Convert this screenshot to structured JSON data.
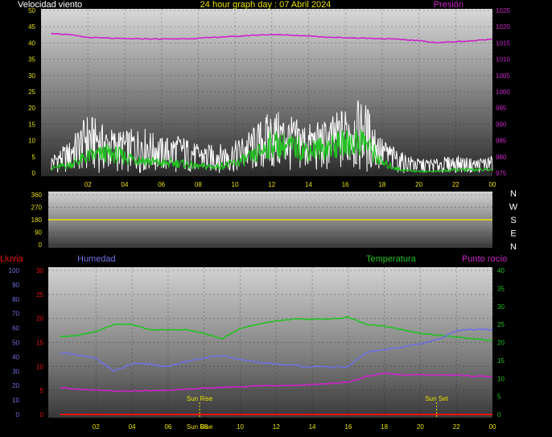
{
  "header": {
    "wind_label": "Velocidad viento",
    "title": "24 hour graph day : 07 Abril 2024",
    "pressure_label": "Presión"
  },
  "lower_labels": {
    "rain": "Lluvia",
    "humidity": "Humedad",
    "temperature": "Temperatura",
    "dewpoint": "Punto rocío"
  },
  "colors": {
    "wind": "#ffffff",
    "wind_avg": "#22c322",
    "pressure": "#cc22cc",
    "direction": "#e8e000",
    "temperature": "#22c322",
    "humidity": "#7070e0",
    "dewpoint": "#cc22cc",
    "rain": "#ee1111",
    "left_axis_1": "#e8e000",
    "left_axis_rain": "#ee1111",
    "left_axis_hum": "#7070e0",
    "right_axis_temp": "#22c322",
    "right_axis_press": "#cc22cc"
  },
  "chart_data": [
    {
      "type": "line",
      "title": "24 hour graph day : 07 Abril 2024",
      "x_ticks": [
        "02",
        "04",
        "06",
        "08",
        "10",
        "12",
        "14",
        "16",
        "18",
        "20",
        "22",
        "00"
      ],
      "y_left": {
        "label": "Velocidad viento",
        "ticks": [
          0,
          5,
          10,
          15,
          20,
          25,
          30,
          35,
          40,
          45,
          50
        ],
        "ylim": [
          0,
          50
        ]
      },
      "y_right": {
        "label": "Presión",
        "ticks": [
          975,
          980,
          985,
          990,
          995,
          1000,
          1005,
          1010,
          1015,
          1020,
          1025
        ],
        "ylim": [
          975,
          1025
        ]
      },
      "series": [
        {
          "name": "Presión",
          "axis": "right",
          "x": [
            0,
            1,
            2,
            3,
            4,
            5,
            6,
            7,
            8,
            9,
            10,
            11,
            12,
            13,
            14,
            15,
            16,
            17,
            18,
            19,
            20,
            21,
            22,
            23,
            24
          ],
          "values": [
            1018,
            1017.5,
            1016.7,
            1016.5,
            1016.3,
            1016.3,
            1016.2,
            1016.3,
            1016.4,
            1016.8,
            1017,
            1017.4,
            1017.6,
            1017.4,
            1017.2,
            1016.8,
            1016.6,
            1016.5,
            1016.3,
            1016.1,
            1015.7,
            1015.1,
            1015.4,
            1015.7,
            1016.2
          ]
        }
      ],
      "wind_gust": {
        "x": [
          0,
          1,
          2,
          3,
          4,
          5,
          6,
          7,
          8,
          9,
          10,
          11,
          12,
          13,
          14,
          15,
          16,
          17,
          18,
          19,
          20,
          21,
          22,
          23,
          24
        ],
        "values": [
          5,
          9,
          17,
          13,
          12,
          13,
          10,
          11,
          8,
          8,
          9,
          13,
          18,
          16,
          14,
          15,
          19,
          21,
          10,
          6,
          4,
          4,
          5,
          4,
          5
        ]
      },
      "wind_avg": {
        "x": [
          0,
          1,
          2,
          3,
          4,
          5,
          6,
          7,
          8,
          9,
          10,
          11,
          12,
          13,
          14,
          15,
          16,
          17,
          18,
          19,
          20,
          21,
          22,
          23,
          24
        ],
        "values": [
          1.5,
          2.5,
          5,
          6,
          5,
          4,
          3,
          3,
          2,
          2,
          3,
          5,
          9,
          8,
          7,
          8,
          9,
          10,
          3,
          1,
          0.5,
          0.5,
          1,
          1,
          1
        ]
      }
    },
    {
      "type": "line",
      "y_left": {
        "ticks": [
          0,
          90,
          180,
          270,
          360
        ],
        "ylim": [
          0,
          360
        ]
      },
      "compass": [
        "N",
        "W",
        "S",
        "E",
        "N"
      ],
      "series": [
        {
          "name": "direction",
          "x": [
            0,
            24
          ],
          "values": [
            180,
            180
          ]
        }
      ]
    },
    {
      "type": "line",
      "x_ticks": [
        "02",
        "04",
        "06",
        "08",
        "10",
        "12",
        "14",
        "16",
        "18",
        "20",
        "22",
        "00"
      ],
      "y_rain": {
        "label": "Lluvia",
        "ticks": [
          0,
          5,
          10,
          15,
          20,
          25,
          30
        ],
        "ylim": [
          0,
          30
        ]
      },
      "y_hum": {
        "label": "Humedad",
        "ticks": [
          0,
          10,
          20,
          30,
          40,
          50,
          60,
          70,
          80,
          90,
          100
        ],
        "ylim": [
          0,
          100
        ]
      },
      "y_temp": {
        "label": "Temperatura",
        "ticks": [
          0,
          5,
          10,
          15,
          20,
          25,
          30,
          35,
          40
        ],
        "ylim": [
          0,
          40
        ]
      },
      "annotations": [
        {
          "label": "Sun Rise",
          "x": 7.75
        },
        {
          "label": "Sun Set",
          "x": 20.9
        }
      ],
      "series": [
        {
          "name": "Temperatura",
          "axis": "temp",
          "x": [
            0,
            1,
            2,
            3,
            4,
            5,
            6,
            7,
            8,
            9,
            10,
            11,
            12,
            13,
            14,
            15,
            16,
            17,
            18,
            19,
            20,
            21,
            22,
            23,
            24
          ],
          "values": [
            21.5,
            22,
            23,
            25,
            25,
            23.5,
            23.5,
            23.5,
            22.5,
            21,
            24,
            25,
            26,
            26.5,
            26.5,
            26.5,
            27,
            25,
            24.5,
            23.5,
            22.5,
            22,
            21.5,
            21,
            20.5
          ]
        },
        {
          "name": "Humedad",
          "axis": "hum",
          "x": [
            0,
            1,
            2,
            3,
            4,
            5,
            6,
            7,
            8,
            9,
            10,
            11,
            12,
            13,
            14,
            15,
            16,
            17,
            18,
            19,
            20,
            21,
            22,
            23,
            24
          ],
          "values": [
            43,
            41,
            39,
            30,
            35,
            35,
            33,
            37,
            39,
            41,
            38,
            36,
            35,
            34,
            33,
            33,
            33,
            43,
            45,
            47,
            49,
            52,
            58,
            59,
            59
          ]
        },
        {
          "name": "Punto rocío",
          "axis": "temp",
          "x": [
            0,
            1,
            2,
            3,
            4,
            5,
            6,
            7,
            8,
            9,
            10,
            11,
            12,
            13,
            14,
            15,
            16,
            17,
            18,
            19,
            20,
            21,
            22,
            23,
            24
          ],
          "values": [
            7.5,
            7,
            6.8,
            6.5,
            6.5,
            6.6,
            6.7,
            7,
            7.3,
            7.5,
            7.7,
            8,
            8,
            8.1,
            8.3,
            8.6,
            9,
            10.5,
            11.5,
            11,
            11,
            11,
            11,
            10.6,
            10.5
          ]
        },
        {
          "name": "Lluvia",
          "axis": "rain",
          "x": [
            0,
            24
          ],
          "values": [
            0,
            0
          ]
        }
      ]
    }
  ]
}
